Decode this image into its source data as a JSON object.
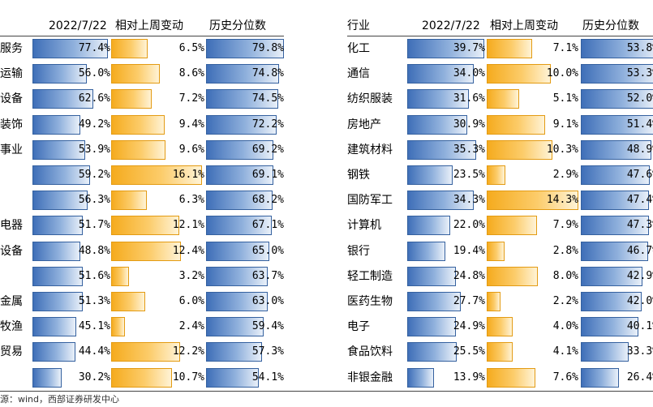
{
  "chart_data": [
    {
      "type": "bar",
      "title": "",
      "columns": [
        "",
        "2022/7/22",
        "相对上周变动",
        "历史分位数"
      ],
      "categories": [
        "服务",
        "运输",
        "设备",
        "装饰",
        "事业",
        "",
        "",
        "电器",
        "设备",
        "",
        "金属",
        "牧渔",
        "贸易",
        ""
      ],
      "series": [
        {
          "name": "2022/7/22",
          "values": [
            77.4,
            56.0,
            62.6,
            49.2,
            53.9,
            59.2,
            56.3,
            51.7,
            48.8,
            51.6,
            51.3,
            45.1,
            44.4,
            30.2
          ],
          "labels": [
            "77.4%",
            "56.0%",
            "62.6%",
            "49.2%",
            "53.9%",
            "59.2%",
            "56.3%",
            "51.7%",
            "48.8%",
            "51.6%",
            "51.3%",
            "45.1%",
            "44.4%",
            "30.2%"
          ]
        },
        {
          "name": "相对上周变动",
          "values": [
            6.5,
            8.6,
            7.2,
            9.4,
            9.6,
            16.1,
            6.3,
            12.1,
            12.4,
            3.2,
            6.0,
            2.4,
            12.2,
            10.7
          ],
          "labels": [
            "6.5%",
            "8.6%",
            "7.2%",
            "9.4%",
            "9.6%",
            "16.1%",
            "6.3%",
            "12.1%",
            "12.4%",
            "3.2%",
            "6.0%",
            "2.4%",
            "12.2%",
            "10.7%"
          ]
        },
        {
          "name": "历史分位数",
          "values": [
            79.8,
            74.8,
            74.5,
            72.2,
            69.2,
            69.1,
            68.2,
            67.1,
            65.0,
            63.7,
            63.0,
            59.4,
            57.3,
            54.1
          ],
          "labels": [
            "79.8%",
            "74.8%",
            "74.5%",
            "72.2%",
            "69.2%",
            "69.1%",
            "68.2%",
            "67.1%",
            "65.0%",
            "63.7%",
            "63.0%",
            "59.4%",
            "57.3%",
            "54.1%"
          ]
        }
      ]
    },
    {
      "type": "bar",
      "title": "",
      "columns": [
        "行业",
        "2022/7/22",
        "相对上周变动",
        "历史分位数"
      ],
      "categories": [
        "化工",
        "通信",
        "纺织服装",
        "房地产",
        "建筑材料",
        "钢铁",
        "国防军工",
        "计算机",
        "银行",
        "轻工制造",
        "医药生物",
        "电子",
        "食品饮料",
        "非银金融"
      ],
      "series": [
        {
          "name": "2022/7/22",
          "values": [
            39.7,
            34.0,
            31.6,
            30.9,
            35.3,
            23.5,
            34.3,
            22.0,
            19.4,
            24.8,
            27.7,
            24.9,
            25.5,
            13.9
          ],
          "labels": [
            "39.7%",
            "34.0%",
            "31.6%",
            "30.9%",
            "35.3%",
            "23.5%",
            "34.3%",
            "22.0%",
            "19.4%",
            "24.8%",
            "27.7%",
            "24.9%",
            "25.5%",
            "13.9%"
          ]
        },
        {
          "name": "相对上周变动",
          "values": [
            7.1,
            10.0,
            5.1,
            9.1,
            10.3,
            2.9,
            14.3,
            7.9,
            2.8,
            8.0,
            2.2,
            4.0,
            4.1,
            7.6
          ],
          "labels": [
            "7.1%",
            "10.0%",
            "5.1%",
            "9.1%",
            "10.3%",
            "2.9%",
            "14.3%",
            "7.9%",
            "2.8%",
            "8.0%",
            "2.2%",
            "4.0%",
            "4.1%",
            "7.6%"
          ]
        },
        {
          "name": "历史分位数",
          "values": [
            53.8,
            53.3,
            52.0,
            51.4,
            48.9,
            47.6,
            47.4,
            47.3,
            46.7,
            42.9,
            42.0,
            40.1,
            33.3,
            26.4
          ],
          "labels": [
            "53.8%",
            "53.3%",
            "52.0%",
            "51.4%",
            "48.9%",
            "47.6%",
            "47.4%",
            "47.3%",
            "46.7%",
            "42.9%",
            "42.0%",
            "40.1%",
            "33.3%",
            "26.4%"
          ]
        }
      ]
    }
  ],
  "source": "源：wind，西部证券研发中心",
  "colors": {
    "blue": "#3f6fb8",
    "orange": "#f5ab1e"
  }
}
